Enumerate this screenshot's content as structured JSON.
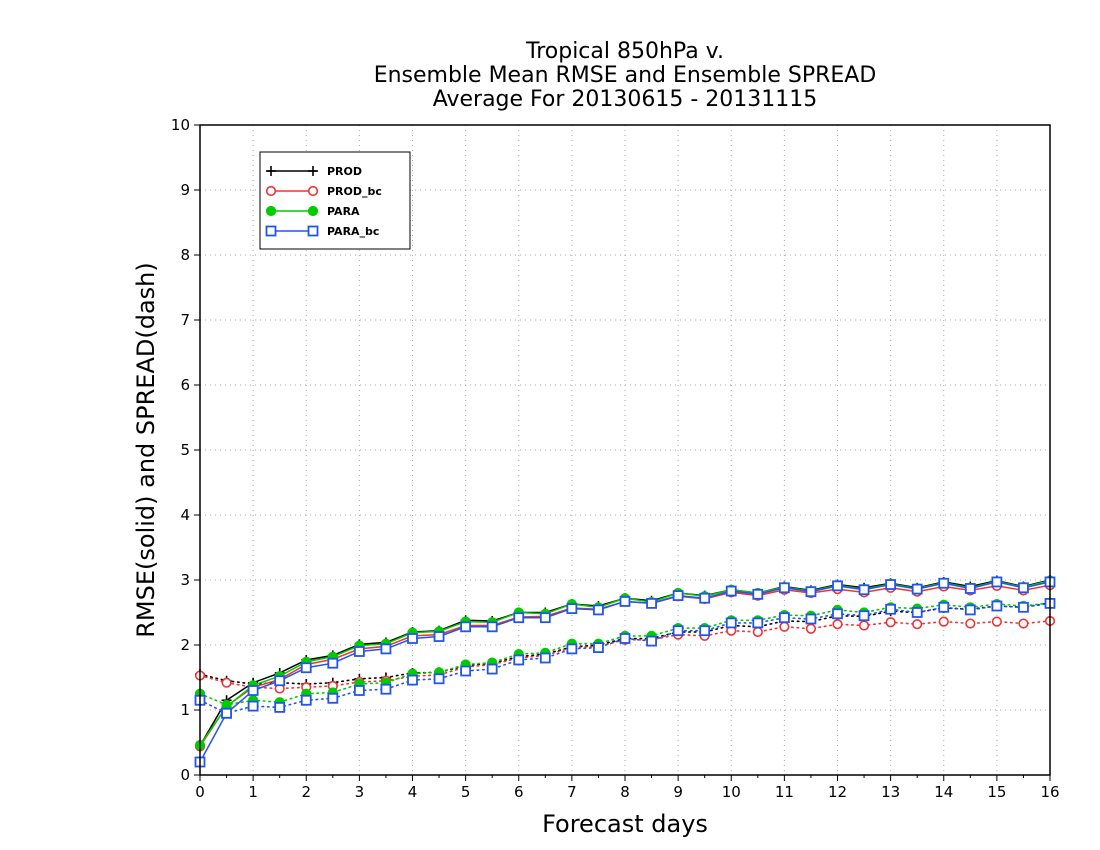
{
  "chart_data": {
    "type": "line",
    "title_lines": [
      "Tropical 850hPa v.",
      "Ensemble Mean RMSE and Ensemble SPREAD",
      "Average For 20130615 - 20131115"
    ],
    "xlabel": "Forecast days",
    "ylabel": "RMSE(solid) and SPREAD(dash)",
    "xlim": [
      0,
      16
    ],
    "ylim": [
      0,
      10
    ],
    "xticks": [
      0,
      1,
      2,
      3,
      4,
      5,
      6,
      7,
      8,
      9,
      10,
      11,
      12,
      13,
      14,
      15,
      16
    ],
    "yticks": [
      0,
      1,
      2,
      3,
      4,
      5,
      6,
      7,
      8,
      9,
      10
    ],
    "grid": true,
    "legend_position": "top-left",
    "x": [
      0,
      0.5,
      1,
      1.5,
      2,
      2.5,
      3,
      3.5,
      4,
      4.5,
      5,
      5.5,
      6,
      6.5,
      7,
      7.5,
      8,
      8.5,
      9,
      9.5,
      10,
      10.5,
      11,
      11.5,
      12,
      12.5,
      13,
      13.5,
      14,
      14.5,
      15,
      15.5,
      16
    ],
    "series": [
      {
        "name": "PROD",
        "color": "#000000",
        "marker": "plus",
        "rmse": [
          0.45,
          1.15,
          1.42,
          1.57,
          1.77,
          1.84,
          2.01,
          2.04,
          2.2,
          2.22,
          2.38,
          2.37,
          2.5,
          2.5,
          2.63,
          2.6,
          2.72,
          2.68,
          2.8,
          2.76,
          2.85,
          2.8,
          2.9,
          2.84,
          2.93,
          2.88,
          2.95,
          2.88,
          2.97,
          2.9,
          2.99,
          2.9,
          3.0
        ],
        "spread": [
          1.55,
          1.45,
          1.4,
          1.42,
          1.4,
          1.42,
          1.48,
          1.5,
          1.57,
          1.58,
          1.68,
          1.72,
          1.82,
          1.86,
          1.97,
          2.0,
          2.1,
          2.1,
          2.2,
          2.2,
          2.3,
          2.28,
          2.37,
          2.36,
          2.45,
          2.44,
          2.52,
          2.5,
          2.57,
          2.55,
          2.6,
          2.58,
          2.65
        ]
      },
      {
        "name": "PROD_bc",
        "color": "#ee3333",
        "marker": "circle-open",
        "rmse": [
          0.44,
          1.06,
          1.35,
          1.47,
          1.7,
          1.78,
          1.94,
          1.98,
          2.14,
          2.16,
          2.3,
          2.3,
          2.43,
          2.44,
          2.57,
          2.55,
          2.67,
          2.64,
          2.75,
          2.71,
          2.81,
          2.76,
          2.85,
          2.8,
          2.86,
          2.81,
          2.88,
          2.82,
          2.9,
          2.84,
          2.91,
          2.84,
          2.92
        ],
        "spread": [
          1.53,
          1.42,
          1.35,
          1.33,
          1.35,
          1.37,
          1.43,
          1.45,
          1.52,
          1.54,
          1.66,
          1.7,
          1.8,
          1.84,
          1.96,
          1.98,
          2.08,
          2.08,
          2.16,
          2.14,
          2.22,
          2.2,
          2.28,
          2.25,
          2.32,
          2.3,
          2.35,
          2.32,
          2.36,
          2.33,
          2.36,
          2.33,
          2.37
        ]
      },
      {
        "name": "PARA",
        "color": "#00cc00",
        "marker": "circle-filled",
        "rmse": [
          0.46,
          1.05,
          1.38,
          1.52,
          1.74,
          1.82,
          1.99,
          2.02,
          2.19,
          2.21,
          2.36,
          2.35,
          2.5,
          2.48,
          2.63,
          2.58,
          2.72,
          2.66,
          2.8,
          2.75,
          2.85,
          2.8,
          2.89,
          2.83,
          2.92,
          2.86,
          2.94,
          2.87,
          2.96,
          2.88,
          2.98,
          2.89,
          2.99
        ],
        "spread": [
          1.25,
          1.08,
          1.15,
          1.12,
          1.25,
          1.27,
          1.4,
          1.42,
          1.56,
          1.58,
          1.7,
          1.73,
          1.86,
          1.88,
          2.02,
          2.02,
          2.14,
          2.14,
          2.26,
          2.26,
          2.38,
          2.38,
          2.46,
          2.45,
          2.54,
          2.5,
          2.58,
          2.56,
          2.62,
          2.58,
          2.63,
          2.6,
          2.65
        ]
      },
      {
        "name": "PARA_bc",
        "color": "#2255ee",
        "marker": "square-open",
        "rmse": [
          0.2,
          0.95,
          1.3,
          1.45,
          1.65,
          1.72,
          1.9,
          1.94,
          2.1,
          2.13,
          2.28,
          2.28,
          2.42,
          2.42,
          2.56,
          2.54,
          2.67,
          2.64,
          2.76,
          2.72,
          2.83,
          2.78,
          2.88,
          2.82,
          2.91,
          2.85,
          2.93,
          2.86,
          2.95,
          2.87,
          2.97,
          2.88,
          2.97
        ],
        "spread": [
          1.15,
          0.95,
          1.06,
          1.04,
          1.15,
          1.18,
          1.3,
          1.32,
          1.46,
          1.48,
          1.6,
          1.63,
          1.77,
          1.8,
          1.94,
          1.96,
          2.1,
          2.06,
          2.22,
          2.22,
          2.34,
          2.34,
          2.42,
          2.4,
          2.48,
          2.45,
          2.55,
          2.5,
          2.58,
          2.54,
          2.6,
          2.58,
          2.64
        ]
      }
    ]
  }
}
